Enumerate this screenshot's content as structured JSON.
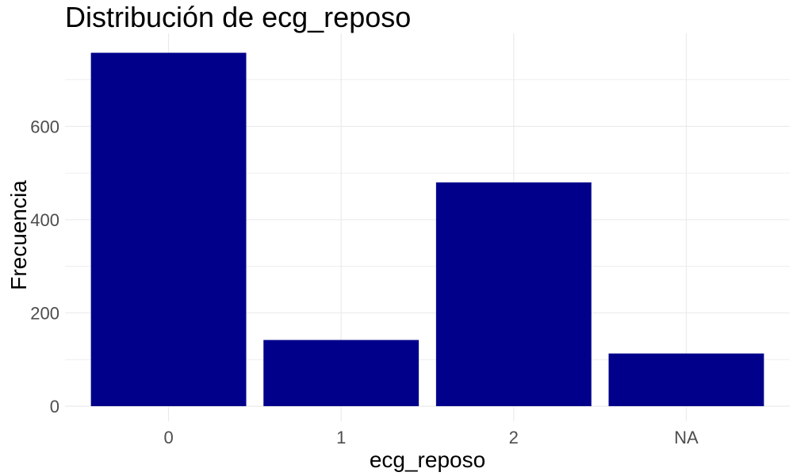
{
  "chart_data": {
    "type": "bar",
    "title": "Distribución de ecg_reposo",
    "xlabel": "ecg_reposo",
    "ylabel": "Frecuencia",
    "categories": [
      "0",
      "1",
      "2",
      "NA"
    ],
    "values": [
      758,
      142,
      480,
      113
    ],
    "ylim": [
      0,
      780
    ],
    "yticks": [
      0,
      200,
      400,
      600
    ],
    "grid": true,
    "bar_color": "#00008B",
    "grid_color": "#EBEBEB"
  }
}
